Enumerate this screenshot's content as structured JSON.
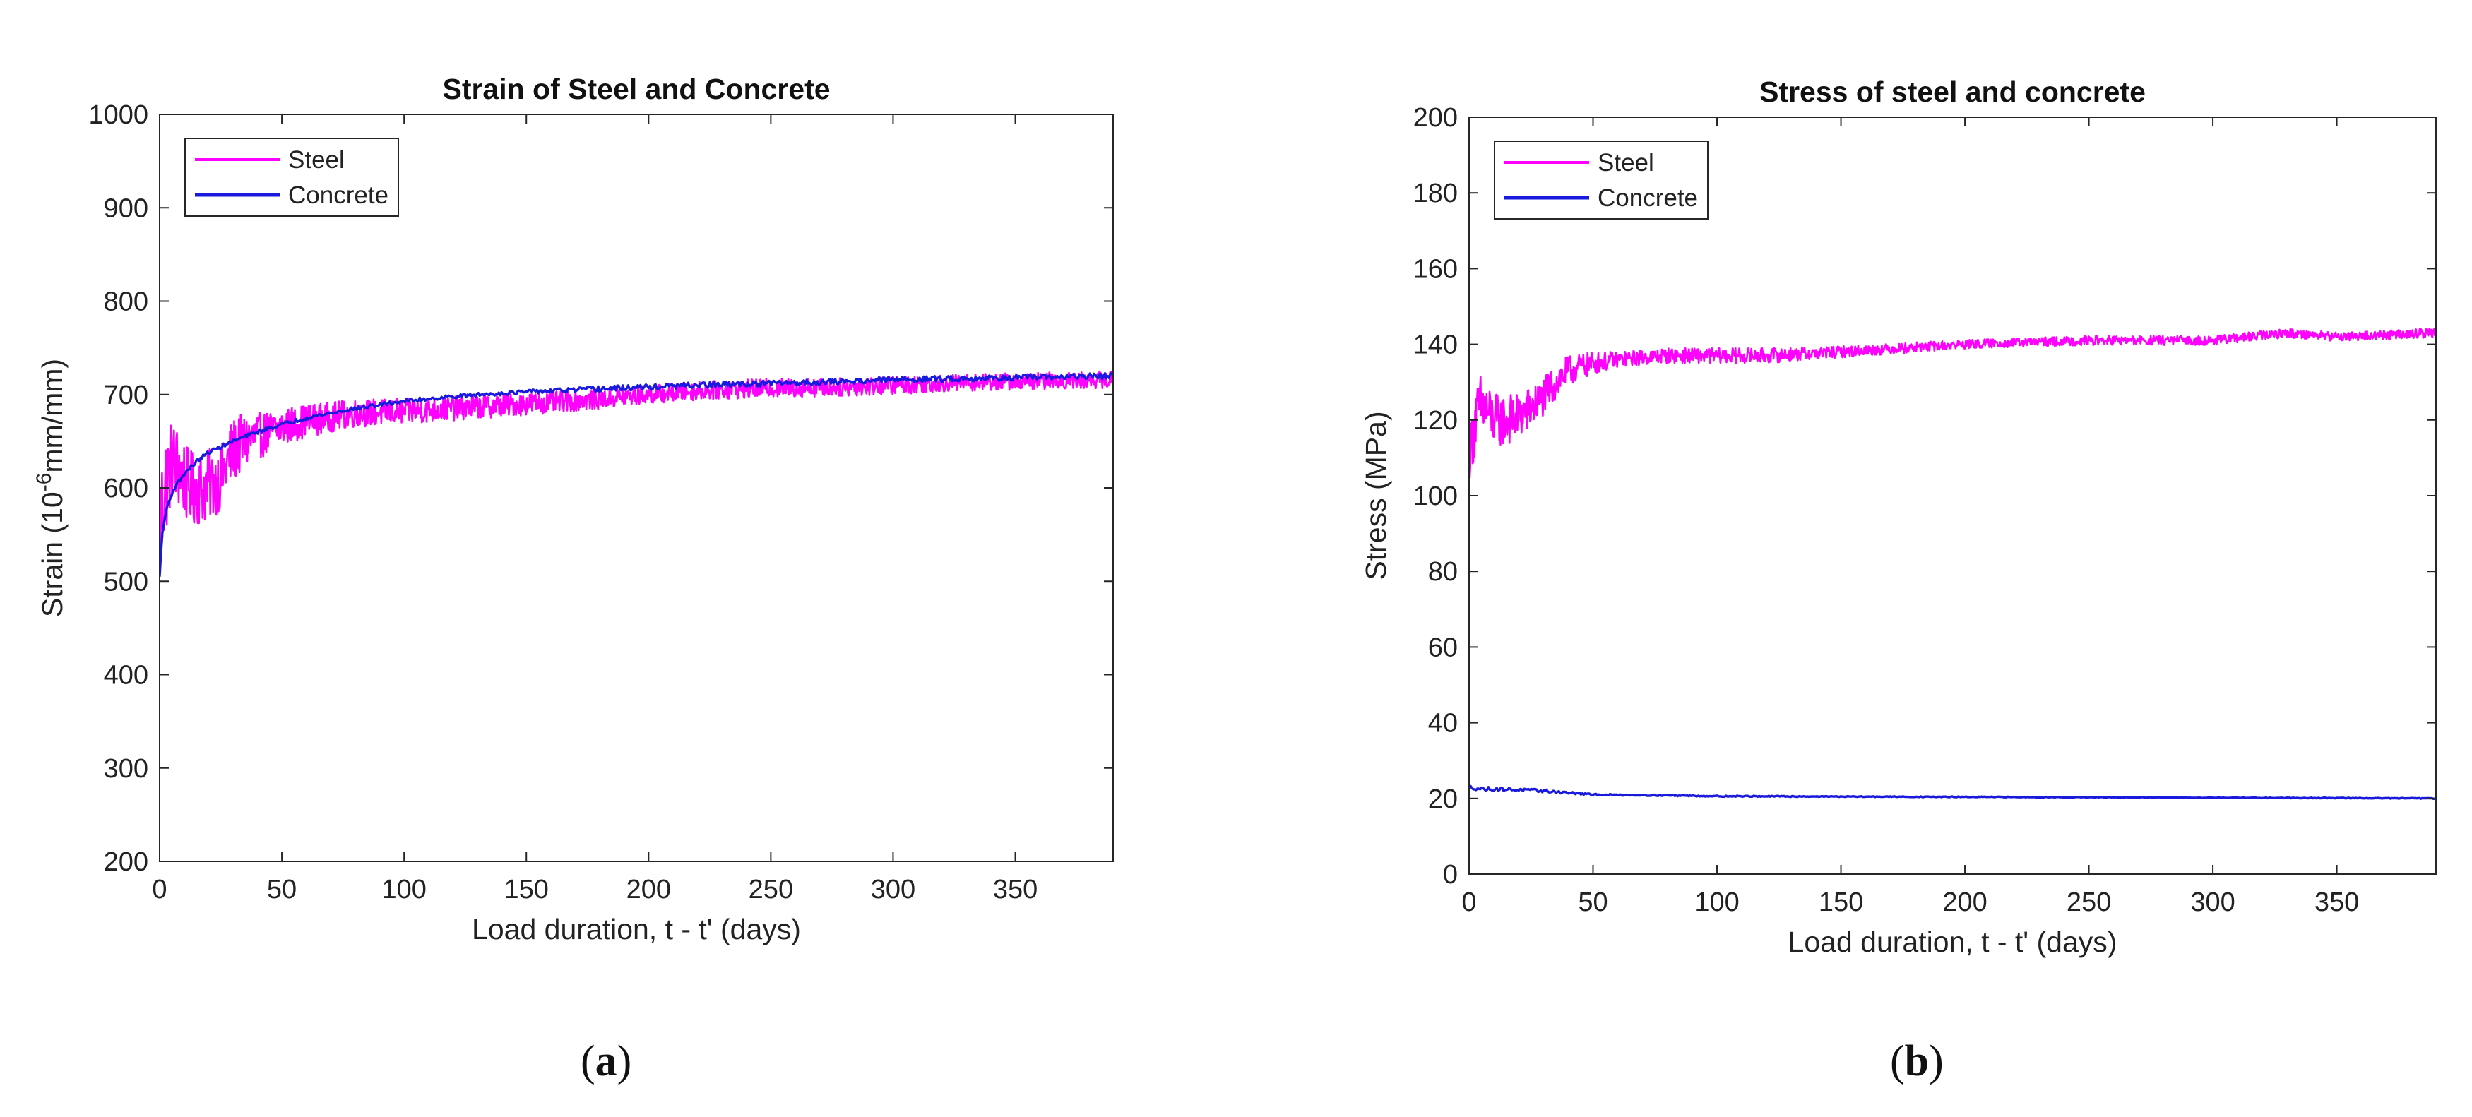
{
  "chart_data": [
    {
      "type": "line",
      "panel": "(a)",
      "panel_letter": "a",
      "title": "Strain of Steel and Concrete",
      "xlabel": "Load duration, t - t' (days)",
      "ylabel_prefix": "Strain (10",
      "ylabel_exponent": "-6",
      "ylabel_suffix": "mm/mm)",
      "xlim": [
        0,
        390
      ],
      "ylim": [
        200,
        1000
      ],
      "xticks": [
        0,
        50,
        100,
        150,
        200,
        250,
        300,
        350
      ],
      "yticks": [
        200,
        300,
        400,
        500,
        600,
        700,
        800,
        900,
        1000
      ],
      "legend": "top-left",
      "series": [
        {
          "name": "Steel",
          "color": "#ff00ff",
          "noisy": true,
          "x": [
            0,
            2,
            5,
            8,
            12,
            18,
            25,
            30,
            35,
            40,
            50,
            60,
            70,
            80,
            100,
            120,
            150,
            180,
            200,
            220,
            250,
            280,
            300,
            320,
            350,
            390
          ],
          "y": [
            560,
            600,
            630,
            620,
            600,
            600,
            610,
            640,
            650,
            655,
            665,
            672,
            676,
            680,
            682,
            685,
            690,
            695,
            700,
            704,
            707,
            708,
            710,
            712,
            714,
            716
          ],
          "noise_amplitude": [
            60,
            60,
            45,
            45,
            40,
            40,
            35,
            35,
            30,
            25,
            20,
            18,
            16,
            15,
            14,
            13,
            12,
            11,
            10,
            10,
            10,
            10,
            10,
            9,
            9,
            9
          ]
        },
        {
          "name": "Concrete",
          "color": "#1a1adf",
          "noisy": false,
          "x": [
            0,
            1,
            3,
            6,
            10,
            15,
            20,
            30,
            40,
            50,
            60,
            80,
            100,
            120,
            150,
            180,
            200,
            220,
            250,
            280,
            300,
            350,
            390
          ],
          "y": [
            505,
            550,
            580,
            600,
            615,
            628,
            638,
            650,
            660,
            668,
            675,
            685,
            693,
            698,
            703,
            706,
            708,
            710,
            712,
            714,
            716,
            718,
            720
          ],
          "noise_amplitude": [
            0,
            0,
            0,
            2,
            2,
            2,
            2,
            2,
            2,
            2,
            2,
            2,
            2,
            2,
            2,
            3,
            3,
            3,
            3,
            3,
            3,
            3,
            3
          ]
        }
      ]
    },
    {
      "type": "line",
      "panel": "(b)",
      "panel_letter": "b",
      "title": "Stress of steel and concrete",
      "xlabel": "Load duration, t - t' (days)",
      "ylabel_prefix": "Stress (MPa)",
      "ylabel_exponent": "",
      "ylabel_suffix": "",
      "xlim": [
        0,
        390
      ],
      "ylim": [
        0,
        200
      ],
      "xticks": [
        0,
        50,
        100,
        150,
        200,
        250,
        300,
        350
      ],
      "yticks": [
        0,
        20,
        40,
        60,
        80,
        100,
        120,
        140,
        160,
        180,
        200
      ],
      "legend": "top-left",
      "series": [
        {
          "name": "Steel",
          "color": "#ff00ff",
          "noisy": true,
          "x": [
            0,
            2,
            5,
            10,
            15,
            20,
            25,
            30,
            35,
            40,
            50,
            60,
            80,
            100,
            120,
            150,
            200,
            250,
            300,
            330,
            350,
            390
          ],
          "y": [
            110,
            118,
            124,
            120,
            120,
            121,
            123,
            126,
            130,
            133,
            135,
            136,
            137,
            137,
            137,
            138,
            140,
            141,
            141,
            143,
            142,
            143
          ],
          "noise_amplitude": [
            6,
            9,
            9,
            7,
            7,
            6,
            6,
            5,
            5,
            4,
            3,
            2,
            2,
            2,
            2,
            1.5,
            1.2,
            1.2,
            1.2,
            1.2,
            1.2,
            1.2
          ]
        },
        {
          "name": "Concrete",
          "color": "#1a1adf",
          "noisy": false,
          "x": [
            0,
            5,
            10,
            20,
            30,
            40,
            50,
            80,
            100,
            150,
            200,
            250,
            300,
            350,
            390
          ],
          "y": [
            23,
            22.5,
            22.5,
            22.3,
            22,
            21.5,
            21,
            20.8,
            20.6,
            20.5,
            20.4,
            20.3,
            20.2,
            20.1,
            20
          ],
          "noise_amplitude": [
            0.5,
            0.5,
            0.5,
            0.4,
            0.4,
            0.3,
            0.2,
            0.15,
            0.15,
            0.1,
            0.1,
            0.1,
            0.1,
            0.1,
            0.1
          ]
        }
      ]
    }
  ]
}
